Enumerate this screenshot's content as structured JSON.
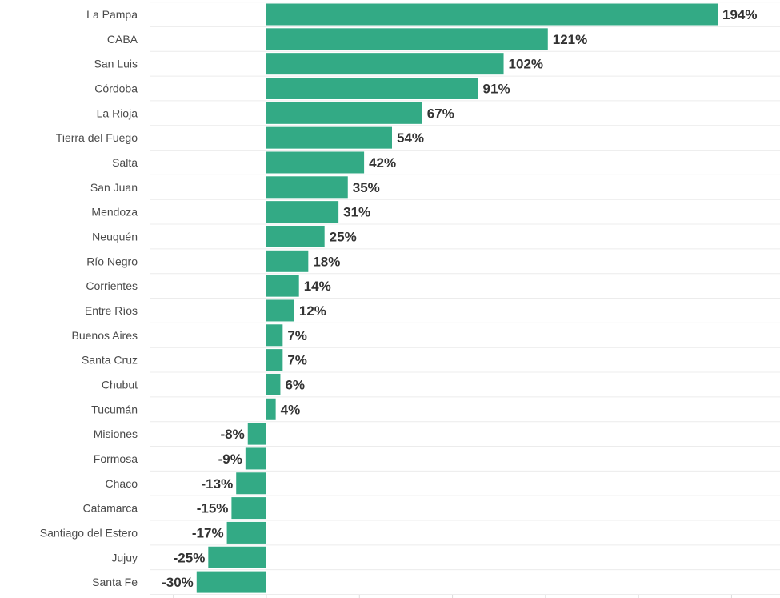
{
  "chart_data": {
    "type": "bar",
    "orientation": "horizontal",
    "categories": [
      "La Pampa",
      "CABA",
      "San Luis",
      "Córdoba",
      "La Rioja",
      "Tierra del Fuego",
      "Salta",
      "San Juan",
      "Mendoza",
      "Neuquén",
      "Río Negro",
      "Corrientes",
      "Entre Ríos",
      "Buenos Aires",
      "Santa Cruz",
      "Chubut",
      "Tucumán",
      "Misiones",
      "Formosa",
      "Chaco",
      "Catamarca",
      "Santiago del Estero",
      "Jujuy",
      "Santa Fe"
    ],
    "values": [
      194,
      121,
      102,
      91,
      67,
      54,
      42,
      35,
      31,
      25,
      18,
      14,
      12,
      7,
      7,
      6,
      4,
      -8,
      -9,
      -13,
      -15,
      -17,
      -25,
      -30
    ],
    "value_labels": [
      "194%",
      "121%",
      "102%",
      "91%",
      "67%",
      "54%",
      "42%",
      "35%",
      "31%",
      "25%",
      "18%",
      "14%",
      "12%",
      "7%",
      "7%",
      "6%",
      "4%",
      "-8%",
      "-9%",
      "-13%",
      "-15%",
      "-17%",
      "-25%",
      "-30%"
    ],
    "unit": "%",
    "title": "",
    "xlabel": "",
    "ylabel": "",
    "xlim": [
      -30,
      194
    ],
    "grid": true,
    "bar_color": "#33aa85"
  }
}
